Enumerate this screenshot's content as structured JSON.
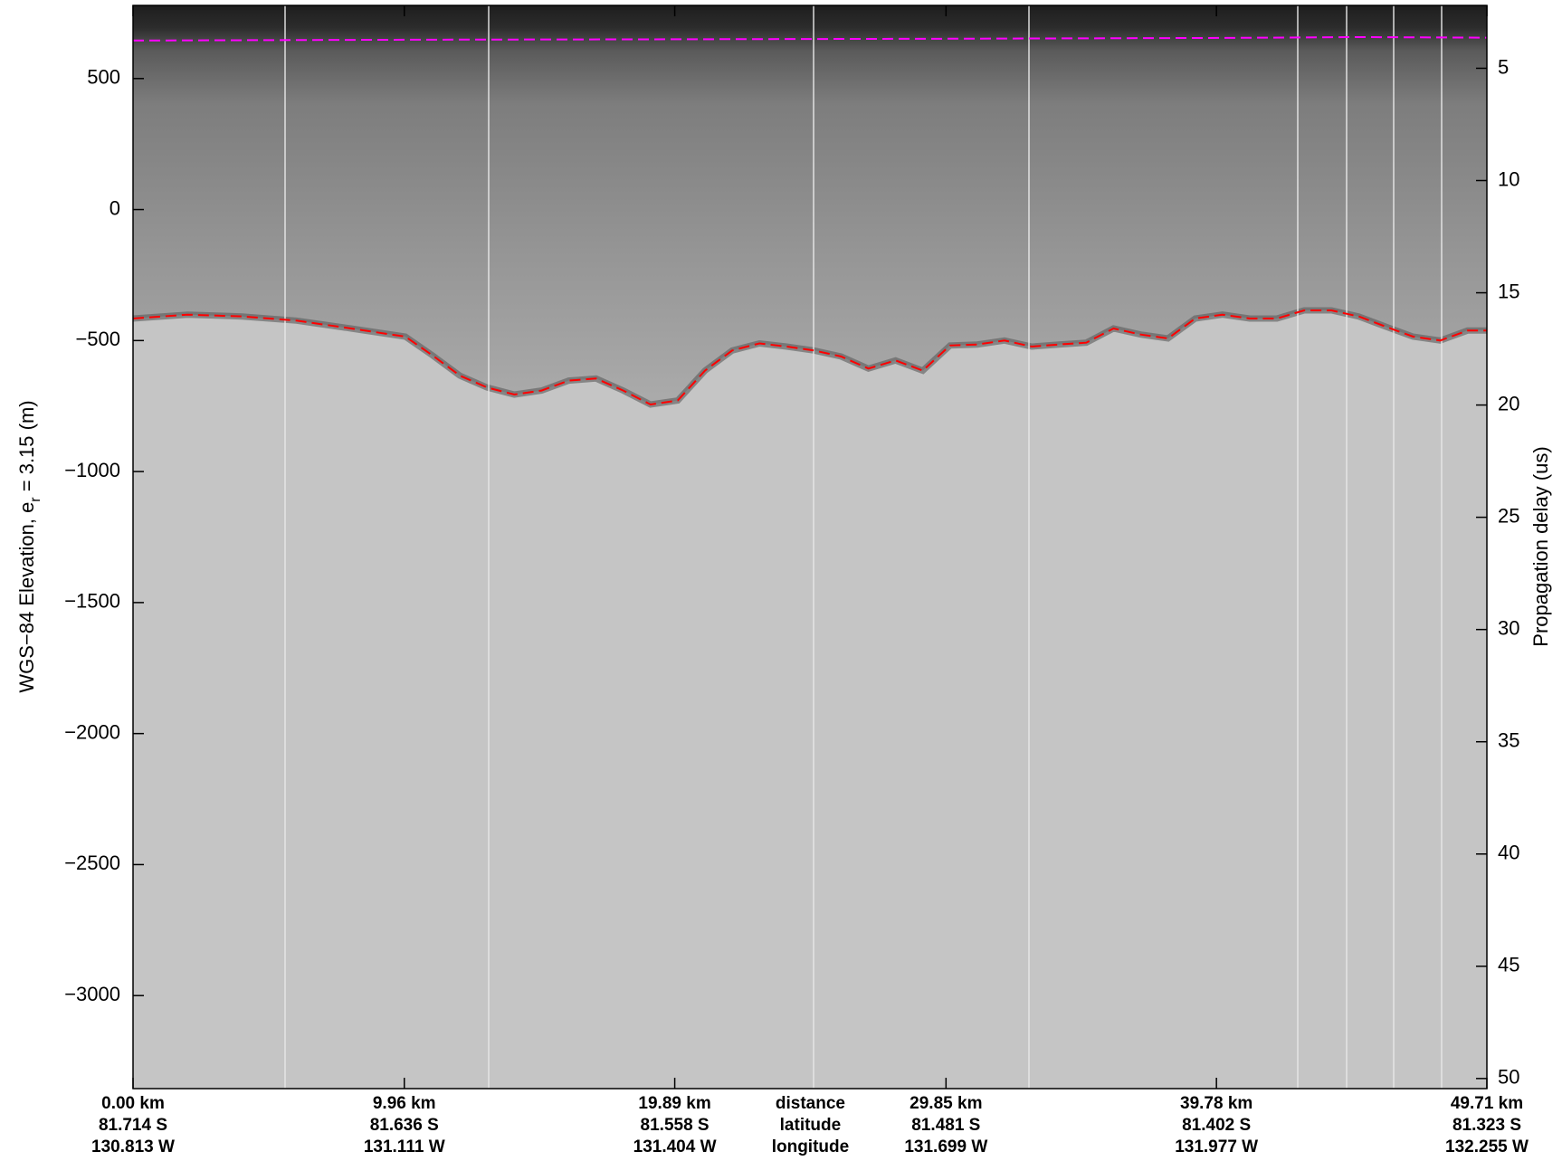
{
  "chart_data": {
    "type": "line",
    "ylabel": {
      "text": "WGS−84 Elevation, e",
      "sub": "r",
      "rest": " = 3.15 (m)"
    },
    "y2label": "Propagation delay (us)",
    "xlim": [
      0,
      49.71
    ],
    "xticks": [
      {
        "value": 0,
        "label": "0.00 km"
      },
      {
        "value": 9.96,
        "label": "9.96 km"
      },
      {
        "value": 19.89,
        "label": "19.89 km"
      },
      {
        "value": 29.85,
        "label": "29.85 km"
      },
      {
        "value": 39.78,
        "label": "39.78 km"
      },
      {
        "value": 49.71,
        "label": "49.71 km"
      }
    ],
    "xtick_latitudes": [
      "81.714 S",
      "81.636 S",
      "81.558 S",
      "81.481 S",
      "81.402 S",
      "81.323 S"
    ],
    "xtick_longitudes": [
      "130.813 W",
      "131.111 W",
      "131.404 W",
      "131.699 W",
      "131.977 W",
      "132.255 W"
    ],
    "xtick_legend": [
      "distance",
      "latitude",
      "longitude"
    ],
    "ylim": [
      -3355,
      779
    ],
    "yticks": [
      500,
      0,
      {
        "value": -500,
        "label": "−500"
      },
      {
        "value": -1000,
        "label": "−1000"
      },
      {
        "value": -1500,
        "label": "−1500"
      },
      {
        "value": -2000,
        "label": "−2000"
      },
      {
        "value": -2500,
        "label": "−2500"
      },
      {
        "value": -3000,
        "label": "−3000"
      }
    ],
    "y2lim": [
      2.2,
      50.45
    ],
    "y2ticks": [
      5,
      10,
      15,
      20,
      25,
      30,
      35,
      40,
      45,
      50
    ],
    "series": [
      {
        "name": "surface",
        "color": "#ff00ff",
        "x": [
          0,
          10,
          20,
          30,
          40,
          45,
          49.71
        ],
        "values": [
          645,
          648,
          650,
          652,
          655,
          658,
          656
        ]
      },
      {
        "name": "bed",
        "color": "#ff0000",
        "x": [
          0,
          2,
          4,
          6,
          8,
          10,
          11,
          12,
          13,
          14,
          15,
          16,
          17,
          18,
          19,
          20,
          21,
          22,
          23,
          24,
          25,
          26,
          27,
          28,
          29,
          30,
          31,
          32,
          33,
          34,
          35,
          36,
          37,
          38,
          39,
          40,
          41,
          42,
          43,
          44,
          45,
          46,
          47,
          48,
          49,
          49.71
        ],
        "values": [
          -416,
          -401,
          -408,
          -424,
          -454,
          -485,
          -557,
          -634,
          -679,
          -706,
          -691,
          -653,
          -645,
          -691,
          -744,
          -729,
          -615,
          -538,
          -511,
          -523,
          -538,
          -561,
          -607,
          -576,
          -615,
          -519,
          -515,
          -500,
          -523,
          -515,
          -508,
          -454,
          -477,
          -492,
          -416,
          -401,
          -416,
          -416,
          -385,
          -385,
          -408,
          -447,
          -485,
          -500,
          -462,
          -462
        ]
      }
    ]
  }
}
